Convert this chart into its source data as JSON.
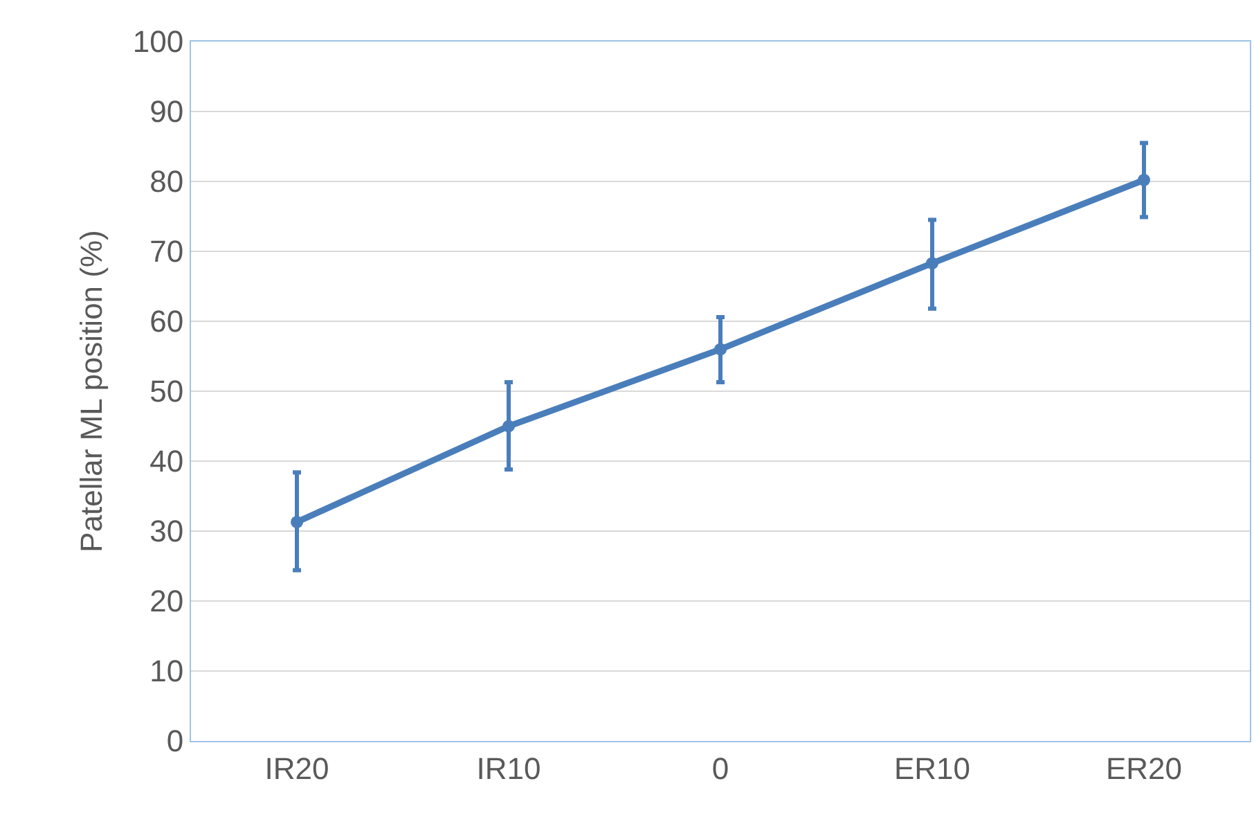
{
  "chart_data": {
    "type": "line",
    "ylabel": "Patellar ML position (%)",
    "categories": [
      "IR20",
      "IR10",
      "0",
      "ER10",
      "ER20"
    ],
    "series": [
      {
        "color": "#4a7ebb",
        "values": [
          31.3,
          45.0,
          56.0,
          68.3,
          80.2
        ],
        "errors": [
          [
            24.4,
            38.4
          ],
          [
            38.8,
            51.3
          ],
          [
            51.3,
            60.6
          ],
          [
            61.8,
            74.5
          ],
          [
            74.9,
            85.5
          ]
        ]
      }
    ],
    "ylim": [
      0,
      100
    ],
    "yticks": [
      0,
      10,
      20,
      30,
      40,
      50,
      60,
      70,
      80,
      90,
      100
    ],
    "grid": "y",
    "marker": "circle",
    "line_style": "solid",
    "legend": false
  }
}
